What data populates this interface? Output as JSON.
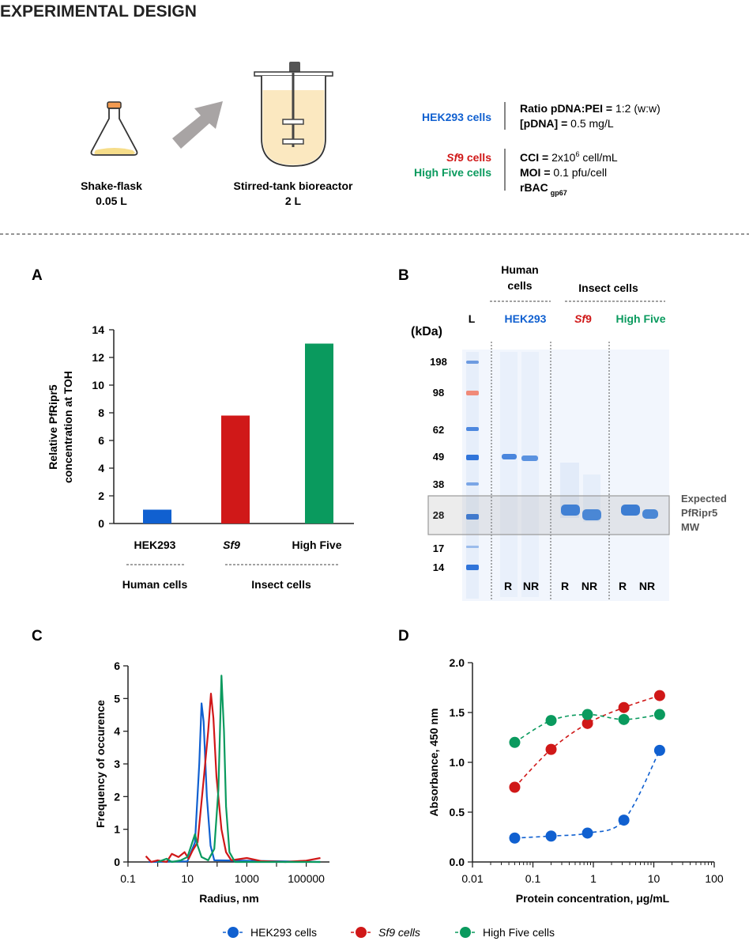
{
  "colors": {
    "hek": "#1060d0",
    "sf9": "#d01818",
    "hf": "#0a9a5e",
    "text": "#222222"
  },
  "header": {
    "title": "EXPERIMENTAL DESIGN"
  },
  "design": {
    "flask": {
      "name": "Shake-flask",
      "volume": "0.05 L"
    },
    "reactor": {
      "name": "Stirred-tank bioreactor",
      "volume": "2 L"
    },
    "hek": {
      "label": "HEK293 cells",
      "ratio_label": "Ratio pDNA:PEI =",
      "ratio_value": "1:2 (w:w)",
      "pdna_label": "[pDNA] =",
      "pdna_value": "0.5 mg/L"
    },
    "insect": {
      "sf9_italic": "Sf",
      "sf9_rest": "9 cells",
      "hf_label": "High Five cells",
      "cci_label": "CCI =",
      "cci_base": "2x10",
      "cci_exp": "6",
      "cci_unit": "cell/mL",
      "moi_label": "MOI =",
      "moi_value": "0.1 pfu/cell",
      "rbac": "rBAC",
      "rbac_sub": "gp67"
    }
  },
  "panelA": {
    "letter": "A",
    "ylabel1": "Relative PfRipr5",
    "ylabel2": "concentration at TOH",
    "group_human": "Human cells",
    "group_insect": "Insect cells",
    "chart_data": {
      "type": "bar",
      "categories": [
        "HEK293",
        "Sf9",
        "High Five"
      ],
      "values": [
        1.0,
        7.8,
        13.0
      ],
      "colors": [
        "#1060d0",
        "#d01818",
        "#0a9a5e"
      ],
      "ylim": [
        0,
        14
      ],
      "yticks": [
        0,
        2,
        4,
        6,
        8,
        10,
        12,
        14
      ],
      "ylabel": "Relative PfRipr5 concentration at TOH"
    }
  },
  "panelB": {
    "letter": "B",
    "kda": "(kDa)",
    "ladder_label": "L",
    "human_header": [
      "Human",
      "cells"
    ],
    "insect_header": "Insect cells",
    "lane_groups": [
      "HEK293",
      "Sf9",
      "High Five"
    ],
    "sf9_italic": "Sf",
    "sf9_rest": "9",
    "mw_markers": [
      "198",
      "98",
      "62",
      "49",
      "38",
      "28",
      "17",
      "14"
    ],
    "lane_labels": [
      "R",
      "NR",
      "R",
      "NR",
      "R",
      "NR"
    ],
    "expected": [
      "Expected",
      "PfRipr5",
      "MW"
    ]
  },
  "panelC": {
    "letter": "C",
    "chart_data": {
      "type": "line",
      "xscale": "log",
      "xlabel": "Radius, nm",
      "ylabel": "Frequency of occurence",
      "xticks": [
        "0.1",
        "10",
        "1000",
        "100000"
      ],
      "yticks": [
        0,
        1,
        2,
        3,
        4,
        5,
        6
      ],
      "ylim": [
        0,
        6
      ],
      "series": [
        {
          "name": "HEK293",
          "color": "#1060d0",
          "points": [
            [
              0.5,
              0
            ],
            [
              10,
              0.02
            ],
            [
              18,
              0.6
            ],
            [
              25,
              3.0
            ],
            [
              30,
              4.85
            ],
            [
              35,
              4.3
            ],
            [
              45,
              2.0
            ],
            [
              60,
              0.5
            ],
            [
              80,
              0.05
            ],
            [
              300000,
              0
            ]
          ]
        },
        {
          "name": "Sf9",
          "color": "#d01818",
          "points": [
            [
              0.4,
              0.18
            ],
            [
              0.6,
              0
            ],
            [
              1,
              0.05
            ],
            [
              2,
              0.0
            ],
            [
              3,
              0.25
            ],
            [
              5,
              0.15
            ],
            [
              8,
              0.3
            ],
            [
              11,
              0.1
            ],
            [
              15,
              0.35
            ],
            [
              22,
              0.6
            ],
            [
              35,
              2.5
            ],
            [
              50,
              4.0
            ],
            [
              62,
              5.15
            ],
            [
              75,
              4.4
            ],
            [
              95,
              2.6
            ],
            [
              140,
              1.0
            ],
            [
              200,
              0.3
            ],
            [
              300,
              0.05
            ],
            [
              1000,
              0.12
            ],
            [
              3000,
              0.03
            ],
            [
              20000,
              0.0
            ],
            [
              100000,
              0.04
            ],
            [
              300000,
              0.12
            ]
          ]
        },
        {
          "name": "High Five",
          "color": "#0a9a5e",
          "points": [
            [
              1,
              0
            ],
            [
              2,
              0.1
            ],
            [
              3,
              0
            ],
            [
              6,
              0.05
            ],
            [
              10,
              0.15
            ],
            [
              14,
              0.55
            ],
            [
              18,
              0.85
            ],
            [
              22,
              0.5
            ],
            [
              30,
              0.15
            ],
            [
              50,
              0.05
            ],
            [
              80,
              0.4
            ],
            [
              110,
              2.2
            ],
            [
              140,
              5.7
            ],
            [
              170,
              4.0
            ],
            [
              200,
              1.7
            ],
            [
              260,
              0.3
            ],
            [
              400,
              0
            ],
            [
              300000,
              0
            ]
          ]
        }
      ]
    }
  },
  "panelD": {
    "letter": "D",
    "chart_data": {
      "type": "scatter",
      "xscale": "log",
      "xlabel": "Protein concentration, μg/mL",
      "ylabel": "Absorbance, 450 nm",
      "xticks": [
        "0.01",
        "0.1",
        "1",
        "10",
        "100"
      ],
      "yticks": [
        "0.0",
        "0.5",
        "1.0",
        "1.5",
        "2.0"
      ],
      "ylim": [
        0,
        2
      ],
      "series": [
        {
          "name": "HEK293",
          "color": "#1060d0",
          "x": [
            0.05,
            0.2,
            0.8,
            3.2,
            12.5
          ],
          "y": [
            0.24,
            0.26,
            0.29,
            0.42,
            1.12
          ]
        },
        {
          "name": "Sf9",
          "color": "#d01818",
          "x": [
            0.05,
            0.2,
            0.8,
            3.2,
            12.5
          ],
          "y": [
            0.75,
            1.13,
            1.39,
            1.55,
            1.67
          ]
        },
        {
          "name": "High Five",
          "color": "#0a9a5e",
          "x": [
            0.05,
            0.2,
            0.8,
            3.2,
            12.5
          ],
          "y": [
            1.2,
            1.42,
            1.48,
            1.43,
            1.48
          ]
        }
      ]
    }
  },
  "legend": {
    "hek": "HEK293 cells",
    "sf9": "Sf9 cells",
    "hf": "High Five cells"
  }
}
